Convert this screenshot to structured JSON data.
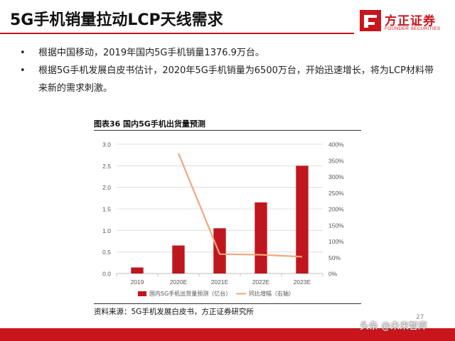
{
  "header": {
    "title": "5G手机销量拉动LCP天线需求",
    "logo": {
      "name": "方正证券",
      "sub": "FOUNDER SECURITIES",
      "icon": "founder-logo-icon",
      "color": "#c9161d"
    }
  },
  "bullets": [
    {
      "marker": "•",
      "text": "根据中国移动，2019年国内5G手机销量1376.9万台。"
    },
    {
      "marker": "•",
      "text": "根据5G手机发展白皮书估计，2020年5G手机销量为6500万台，开始迅速增长，将为LCP材料带来新的需求刺激。"
    }
  ],
  "chart_data": {
    "type": "bar",
    "title": "图表36 国内5G手机出货量预测",
    "categories": [
      "2019",
      "2020E",
      "2021E",
      "2022E",
      "2023E"
    ],
    "series": [
      {
        "name": "国内5G手机出货量预测（亿台）",
        "kind": "bar",
        "axis": "left",
        "color": "#c0161e",
        "values": [
          0.14,
          0.65,
          1.05,
          1.65,
          2.5
        ]
      },
      {
        "name": "同比增幅（右轴）",
        "kind": "line",
        "axis": "right",
        "color": "#f3a77b",
        "values": [
          null,
          372,
          60,
          58,
          52
        ]
      }
    ],
    "y_left": {
      "ylim": [
        0,
        3.0
      ],
      "ticks": [
        "0.0",
        "0.5",
        "1.0",
        "1.5",
        "2.0",
        "2.5",
        "3.0"
      ]
    },
    "y_right": {
      "ylim": [
        0,
        400
      ],
      "ticks": [
        "0%",
        "50%",
        "100%",
        "150%",
        "200%",
        "250%",
        "300%",
        "350%",
        "400%"
      ]
    },
    "grid": true,
    "legend": "bottom"
  },
  "source": "资料来源：5G手机发展白皮书，方正证券研究所",
  "watermark": "头条 @未来智库",
  "page_number": "27"
}
